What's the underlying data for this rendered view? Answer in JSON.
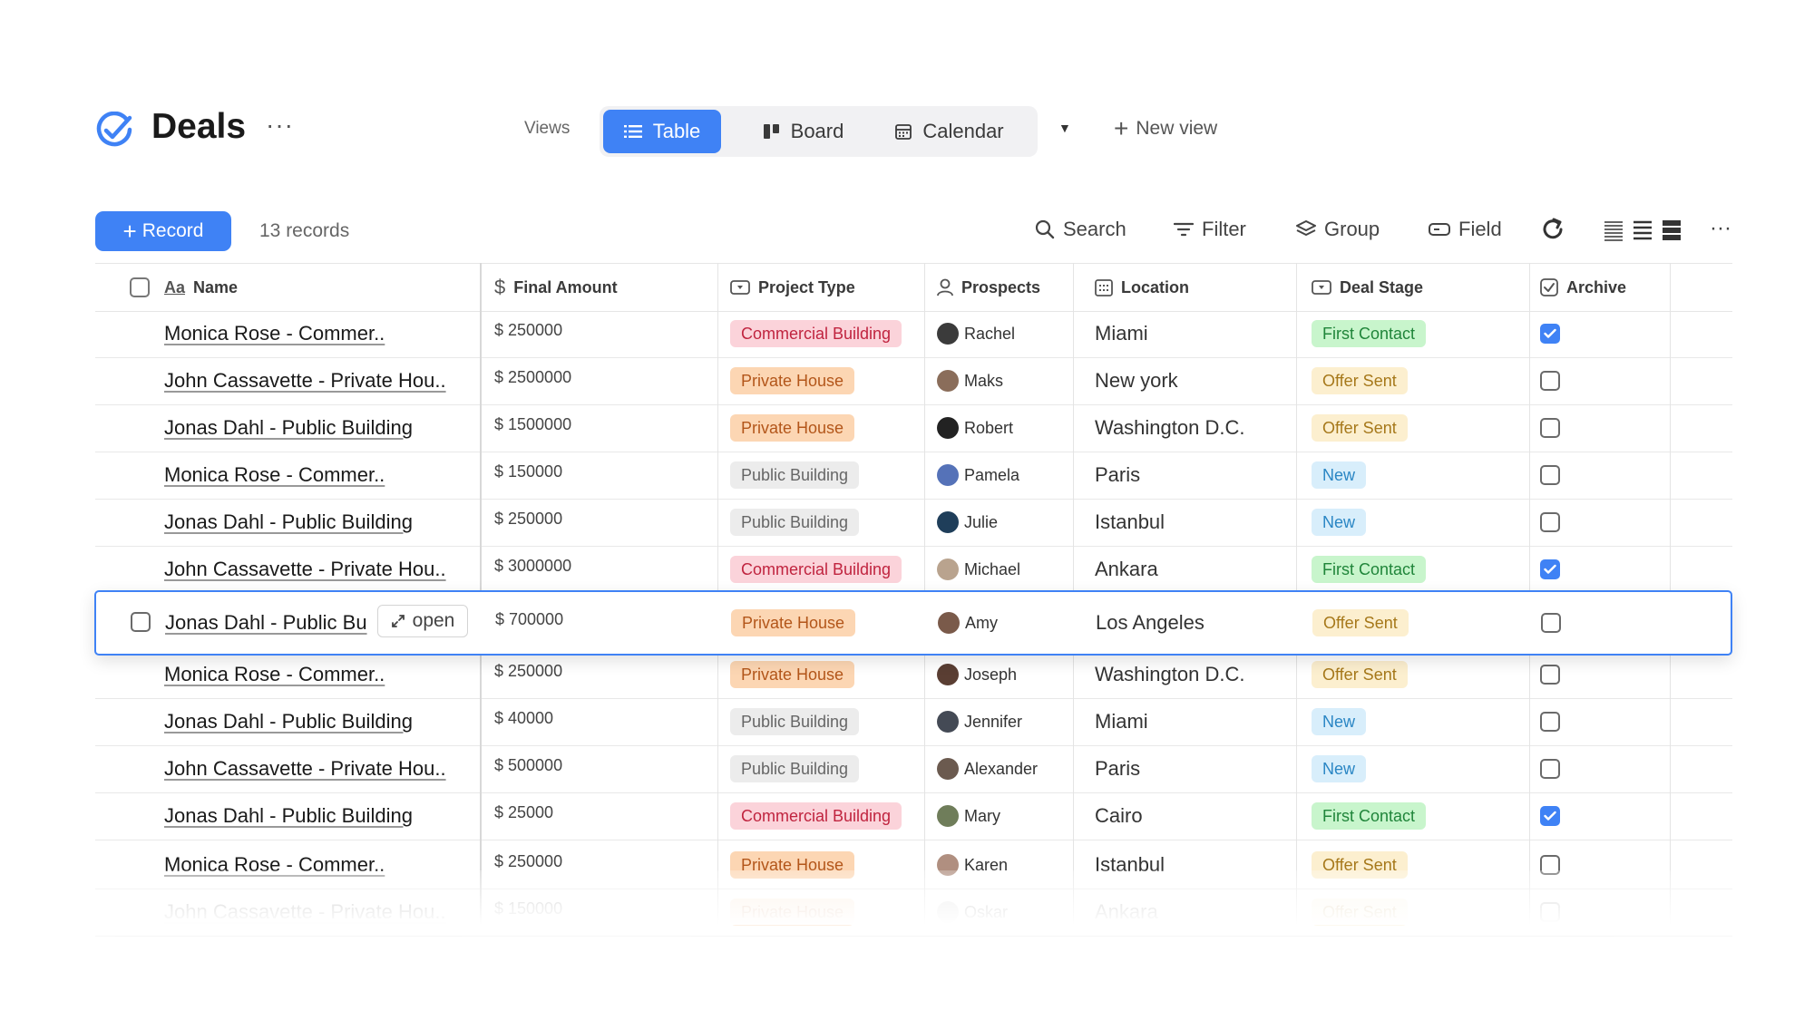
{
  "app": {
    "title": "Deals",
    "more": "···",
    "views_label": "Views",
    "views": [
      {
        "label": "Table",
        "icon": "table-list-icon",
        "active": true
      },
      {
        "label": "Board",
        "icon": "board-icon",
        "active": false
      },
      {
        "label": "Calendar",
        "icon": "calendar-icon",
        "active": false
      }
    ],
    "new_view": "New view",
    "accent_color": "#3f82f5"
  },
  "toolbar": {
    "record_label": "Record",
    "records_count": "13 records",
    "search": "Search",
    "filter": "Filter",
    "group": "Group",
    "field": "Field",
    "more": "···"
  },
  "table": {
    "columns": [
      {
        "label": "Name",
        "icon": "text-aa-icon"
      },
      {
        "label": "Final Amount",
        "icon": "dollar-icon"
      },
      {
        "label": "Project Type",
        "icon": "select-icon"
      },
      {
        "label": "Prospects",
        "icon": "person-icon"
      },
      {
        "label": "Location",
        "icon": "calendar-grid-icon"
      },
      {
        "label": "Deal Stage",
        "icon": "select-icon"
      },
      {
        "label": "Archive",
        "icon": "checkbox-icon"
      }
    ],
    "open_label": "open",
    "rows": [
      {
        "name": "Monica Rose - Commer..",
        "amount": "$ 250000",
        "type": "Commercial Building",
        "prospect": "Rachel",
        "location": "Miami",
        "stage": "First Contact",
        "archived": true
      },
      {
        "name": "John Cassavette - Private Hou..",
        "amount": "$ 2500000",
        "type": "Private House",
        "prospect": "Maks",
        "location": "New york",
        "stage": "Offer Sent",
        "archived": false
      },
      {
        "name": "Jonas Dahl - Public Building",
        "amount": "$ 1500000",
        "type": "Private House",
        "prospect": "Robert",
        "location": "Washington D.C.",
        "stage": "Offer Sent",
        "archived": false
      },
      {
        "name": "Monica Rose - Commer..",
        "amount": "$ 150000",
        "type": "Public Building",
        "prospect": "Pamela",
        "location": "Paris",
        "stage": "New",
        "archived": false
      },
      {
        "name": "Jonas Dahl - Public Building",
        "amount": "$ 250000",
        "type": "Public Building",
        "prospect": "Julie",
        "location": "Istanbul",
        "stage": "New",
        "archived": false
      },
      {
        "name": "John Cassavette - Private Hou..",
        "amount": "$ 3000000",
        "type": "Commercial Building",
        "prospect": "Michael",
        "location": "Ankara",
        "stage": "First Contact",
        "archived": true
      },
      {
        "name": "Jonas Dahl - Public Bu",
        "amount": "$ 700000",
        "type": "Private House",
        "prospect": "Amy",
        "location": "Los Angeles",
        "stage": "Offer Sent",
        "archived": false,
        "selected": true
      },
      {
        "name": "Monica Rose - Commer..",
        "amount": "$ 250000",
        "type": "Private House",
        "prospect": "Joseph",
        "location": "Washington D.C.",
        "stage": "Offer Sent",
        "archived": false
      },
      {
        "name": "Jonas Dahl - Public Building",
        "amount": "$ 40000",
        "type": "Public Building",
        "prospect": "Jennifer",
        "location": "Miami",
        "stage": "New",
        "archived": false
      },
      {
        "name": "John Cassavette - Private Hou..",
        "amount": "$ 500000",
        "type": "Public Building",
        "prospect": "Alexander",
        "location": "Paris",
        "stage": "New",
        "archived": false
      },
      {
        "name": "Jonas Dahl - Public Building",
        "amount": "$ 25000",
        "type": "Commercial Building",
        "prospect": "Mary",
        "location": "Cairo",
        "stage": "First Contact",
        "archived": true
      },
      {
        "name": "Monica Rose - Commer..",
        "amount": "$ 250000",
        "type": "Private House",
        "prospect": "Karen",
        "location": "Istanbul",
        "stage": "Offer Sent",
        "archived": false
      },
      {
        "name": "John Cassavette - Private Hou..",
        "amount": "$ 150000",
        "type": "Private House",
        "prospect": "Oskar",
        "location": "Ankara",
        "stage": "Offer Sent",
        "archived": false
      }
    ]
  },
  "tag_colors": {
    "Commercial Building": {
      "bg": "#fbd3da",
      "fg": "#c0243f"
    },
    "Private House": {
      "bg": "#fcd6b3",
      "fg": "#b3561a"
    },
    "Public Building": {
      "bg": "#ececec",
      "fg": "#666666"
    },
    "First Contact": {
      "bg": "#c8f5cc",
      "fg": "#20853a"
    },
    "Offer Sent": {
      "bg": "#fcefcf",
      "fg": "#a6781a"
    },
    "New": {
      "bg": "#d8eefb",
      "fg": "#2a86c4"
    }
  },
  "avatar_colors": [
    "#3b3b3b",
    "#8a6d5a",
    "#222222",
    "#5572b8",
    "#1f3e5a",
    "#b9a38e",
    "#7a5a4a",
    "#5a3e33",
    "#444a55",
    "#6b5a4f",
    "#6f7d5a",
    "#b08f80",
    "#c0c0c0"
  ]
}
